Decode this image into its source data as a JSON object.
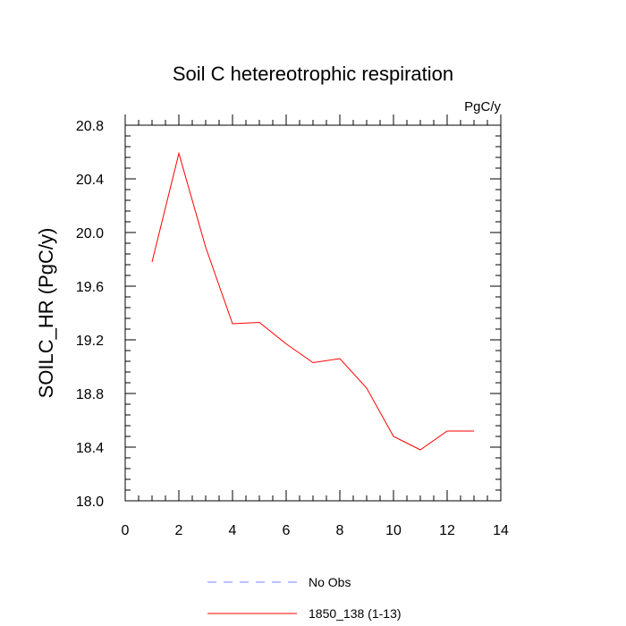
{
  "chart_data": {
    "type": "line",
    "title": "Soil C hetereotrophic respiration",
    "units_label": "PgC/y",
    "xlabel": "",
    "ylabel": "SOILC_HR  (PgC/y)",
    "xlim": [
      0,
      14
    ],
    "ylim": [
      18.0,
      20.8
    ],
    "x_ticks": [
      0,
      2,
      4,
      6,
      8,
      10,
      12,
      14
    ],
    "x_tick_labels": [
      "0",
      "2",
      "4",
      "6",
      "8",
      "10",
      "12",
      "14"
    ],
    "y_ticks": [
      18.0,
      18.4,
      18.8,
      19.2,
      19.6,
      20.0,
      20.4,
      20.8
    ],
    "y_tick_labels": [
      "18.0",
      "18.4",
      "18.8",
      "19.2",
      "19.6",
      "20.0",
      "20.4",
      "20.8"
    ],
    "grid": false,
    "legend_position": "bottom",
    "series": [
      {
        "name": "No Obs",
        "color": "#8080ff",
        "dash": "dashed",
        "x": [],
        "y": []
      },
      {
        "name": "1850_138 (1-13)",
        "color": "#ff0000",
        "dash": "solid",
        "x": [
          1,
          2,
          3,
          4,
          5,
          6,
          7,
          8,
          9,
          10,
          11,
          12,
          13
        ],
        "y": [
          19.78,
          20.59,
          19.89,
          19.32,
          19.33,
          19.17,
          19.03,
          19.06,
          18.84,
          18.48,
          18.38,
          18.52,
          18.52
        ]
      }
    ]
  }
}
